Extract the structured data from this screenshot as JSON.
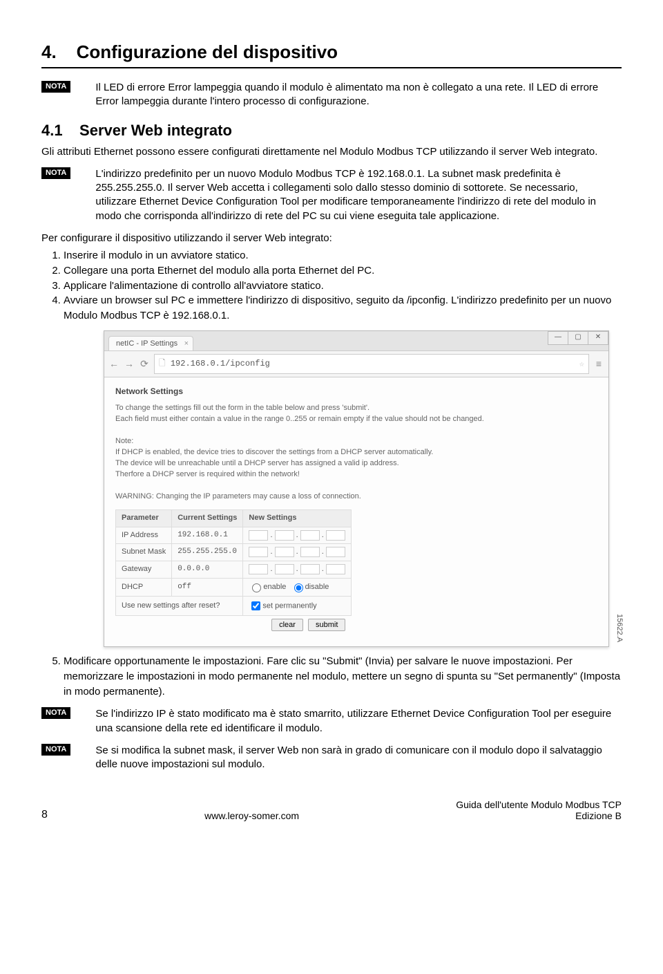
{
  "chapter": {
    "number": "4.",
    "title": "Configurazione del dispositivo"
  },
  "nota_label": "NOTA",
  "nota1": "Il LED di errore Error lampeggia quando il modulo è alimentato ma non è collegato a una rete. Il LED di errore Error lampeggia durante l'intero processo di configurazione.",
  "section41": {
    "number": "4.1",
    "title": "Server Web integrato"
  },
  "section41_body": "Gli attributi Ethernet possono essere configurati direttamente nel Modulo Modbus TCP utilizzando il server Web integrato.",
  "nota2": "L'indirizzo predefinito per un nuovo Modulo Modbus TCP è 192.168.0.1. La subnet mask predefinita è 255.255.255.0. Il server Web accetta i collegamenti solo dallo stesso dominio di sottorete. Se necessario, utilizzare Ethernet Device Configuration Tool per modificare temporaneamente l'indirizzo di rete del modulo in modo che corrisponda all'indirizzo di rete del PC su cui viene eseguita tale applicazione.",
  "pre_steps": "Per configurare il dispositivo utilizzando il server Web integrato:",
  "steps_a": [
    "Inserire il modulo in un avviatore statico.",
    "Collegare una porta Ethernet del modulo alla porta Ethernet del PC.",
    "Applicare l'alimentazione di controllo all'avviatore statico.",
    "Avviare un browser sul PC e immettere l'indirizzo di dispositivo, seguito da /ipconfig. L'indirizzo predefinito per un nuovo Modulo Modbus TCP è 192.168.0.1."
  ],
  "browser": {
    "tab_title": "netIC - IP Settings",
    "url": "192.168.0.1/ipconfig",
    "heading": "Network Settings",
    "intro1": "To change the settings fill out the form in the table below and press 'submit'.",
    "intro2": "Each field must either contain a value in the range 0..255 or remain empty if the value should not be changed.",
    "note_label": "Note:",
    "note1": "If DHCP is enabled, the device tries to discover the settings from a DHCP server automatically.",
    "note2": "The device will be unreachable until a DHCP server has assigned a valid ip address.",
    "note3": "Therfore a DHCP server is required within the network!",
    "warning": "WARNING: Changing the IP parameters may cause a loss of connection.",
    "table": {
      "headers": [
        "Parameter",
        "Current Settings",
        "New Settings"
      ],
      "rows": [
        {
          "param": "IP Address",
          "current": "192.168.0.1",
          "type": "ip"
        },
        {
          "param": "Subnet Mask",
          "current": "255.255.255.0",
          "type": "ip"
        },
        {
          "param": "Gateway",
          "current": "0.0.0.0",
          "type": "ip"
        },
        {
          "param": "DHCP",
          "current": "off",
          "type": "dhcp"
        }
      ],
      "enable": "enable",
      "disable": "disable",
      "reset_row": "Use new settings after reset?",
      "set_perm": "set permanently",
      "clear": "clear",
      "submit": "submit"
    },
    "figure_id": "15622.A"
  },
  "step5": "Modificare opportunamente le impostazioni. Fare clic su \"Submit\" (Invia) per salvare le nuove impostazioni. Per memorizzare le impostazioni in modo permanente nel modulo, mettere un segno di spunta su \"Set permanently\" (Imposta in modo permanente).",
  "nota3": "Se l'indirizzo IP è stato modificato ma è stato smarrito, utilizzare Ethernet Device Configuration Tool per eseguire una scansione della rete ed identificare il modulo.",
  "nota4": "Se si modifica la subnet mask, il server Web non sarà in grado di comunicare con il modulo dopo il salvataggio delle nuove impostazioni sul modulo.",
  "footer": {
    "page": "8",
    "center": "www.leroy-somer.com",
    "right1": "Guida dell'utente Modulo Modbus TCP",
    "right2": "Edizione B"
  }
}
